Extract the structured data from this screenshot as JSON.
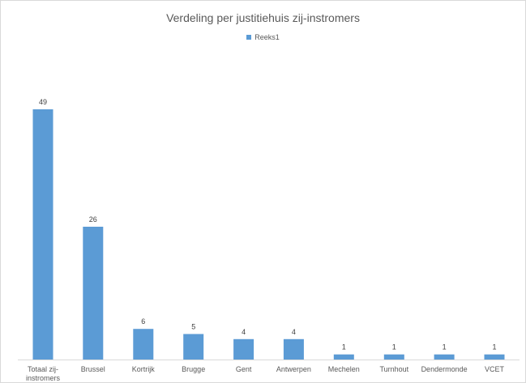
{
  "chart_data": {
    "type": "bar",
    "title": "Verdeling per justitiehuis zij-instromers",
    "categories": [
      [
        "Totaal zij-",
        "instromers"
      ],
      [
        "Brussel"
      ],
      [
        "Kortrijk"
      ],
      [
        "Brugge"
      ],
      [
        "Gent"
      ],
      [
        "Antwerpen"
      ],
      [
        "Mechelen"
      ],
      [
        "Turnhout"
      ],
      [
        "Dendermonde"
      ],
      [
        "VCET"
      ]
    ],
    "series": [
      {
        "name": "Reeks1",
        "values": [
          49,
          26,
          6,
          5,
          4,
          4,
          1,
          1,
          1,
          1
        ]
      }
    ],
    "ylim": [
      0,
      50
    ],
    "legend_position": "top",
    "grid": false,
    "colors": {
      "bar": "#5b9bd5",
      "axis": "#d9d9d9",
      "text": "#595959"
    }
  }
}
